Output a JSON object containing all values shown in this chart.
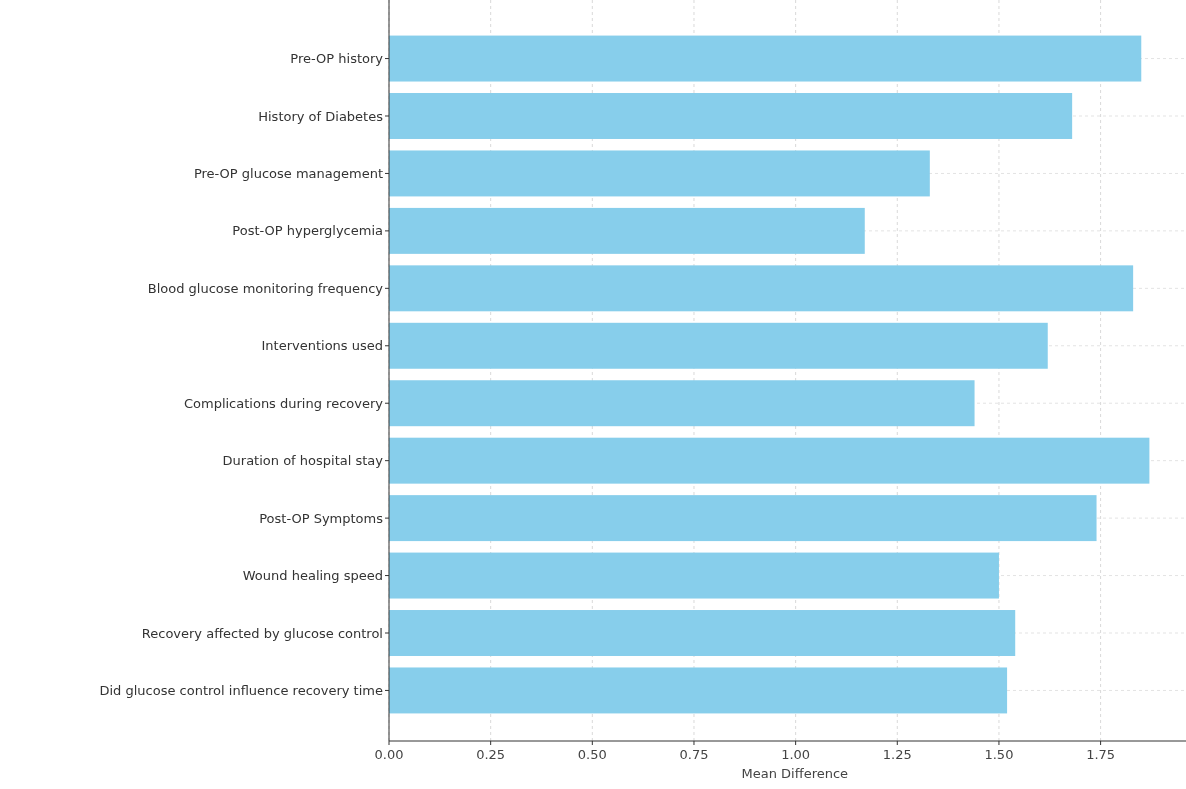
{
  "chart_data": {
    "type": "bar",
    "orientation": "horizontal",
    "xlabel": "Mean Difference",
    "categories": [
      "Pre-OP history",
      "History of Diabetes",
      "Pre-OP glucose management",
      "Post-OP hyperglycemia",
      "Blood glucose monitoring frequency",
      "Interventions used",
      "Complications during recovery",
      "Duration of hospital stay",
      "Post-OP Symptoms",
      "Wound healing speed",
      "Recovery affected by glucose control",
      "Did glucose control influence recovery time"
    ],
    "values": [
      1.85,
      1.68,
      1.33,
      1.17,
      1.83,
      1.62,
      1.44,
      1.87,
      1.74,
      1.5,
      1.54,
      1.52
    ],
    "color": "#87ceeb",
    "xlim": [
      0,
      1.96
    ],
    "xticks": [
      {
        "value": 0,
        "label": "0.00"
      },
      {
        "value": 0.25,
        "label": "0.25"
      },
      {
        "value": 0.5,
        "label": "0.50"
      },
      {
        "value": 0.75,
        "label": "0.75"
      },
      {
        "value": 1,
        "label": "1.00"
      },
      {
        "value": 1.25,
        "label": "1.25"
      },
      {
        "value": 1.5,
        "label": "1.50"
      },
      {
        "value": 1.75,
        "label": "1.75"
      }
    ],
    "grid": true
  }
}
